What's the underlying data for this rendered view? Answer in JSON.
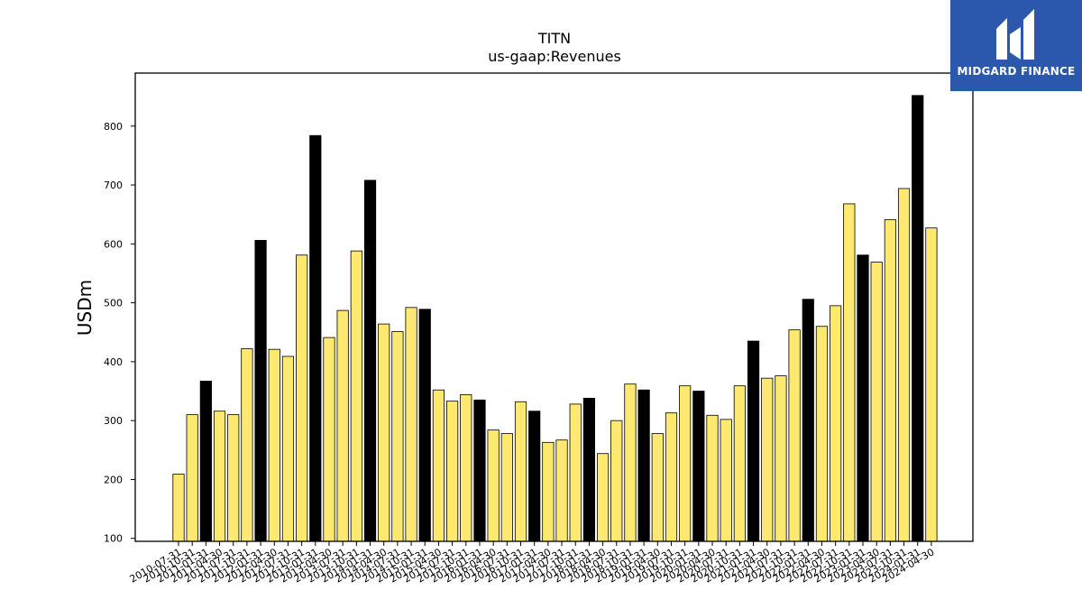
{
  "chart_data": {
    "type": "bar",
    "title": "TITN",
    "subtitle": "us-gaap:Revenues",
    "ylabel": "USDm",
    "xlabel": "",
    "ylim": [
      95,
      890
    ],
    "yticks": [
      100,
      200,
      300,
      400,
      500,
      600,
      700,
      800
    ],
    "grid": false,
    "colors": {
      "quarter": "#fde96f",
      "annual": "#000000",
      "edge": "#000000"
    },
    "categories": [
      "2010-07-31",
      "2010-10-31",
      "2011-01-31",
      "2011-04-30",
      "2011-07-31",
      "2011-10-31",
      "2012-01-31",
      "2012-04-30",
      "2012-07-31",
      "2012-10-31",
      "2013-01-31",
      "2013-04-30",
      "2013-07-31",
      "2013-10-31",
      "2014-01-31",
      "2014-04-30",
      "2014-07-31",
      "2014-10-31",
      "2015-01-31",
      "2015-04-30",
      "2015-07-31",
      "2015-10-31",
      "2016-01-31",
      "2016-04-30",
      "2016-07-31",
      "2016-10-31",
      "2017-01-31",
      "2017-04-30",
      "2017-07-31",
      "2017-10-31",
      "2018-01-31",
      "2018-04-30",
      "2018-07-31",
      "2018-10-31",
      "2019-01-31",
      "2019-04-30",
      "2019-07-31",
      "2019-10-31",
      "2020-01-31",
      "2020-04-30",
      "2020-07-31",
      "2020-10-31",
      "2021-01-31",
      "2021-04-30",
      "2021-07-31",
      "2021-10-31",
      "2022-01-31",
      "2022-04-30",
      "2022-07-31",
      "2022-10-31",
      "2023-01-31",
      "2023-04-30",
      "2023-07-31",
      "2023-10-31",
      "2024-01-31",
      "2024-04-30"
    ],
    "values": [
      209,
      310,
      367,
      316,
      310,
      422,
      606,
      421,
      409,
      581,
      784,
      441,
      487,
      588,
      708,
      464,
      451,
      492,
      489,
      352,
      333,
      344,
      335,
      284,
      278,
      332,
      316,
      263,
      267,
      328,
      338,
      244,
      300,
      362,
      352,
      278,
      313,
      359,
      350,
      309,
      302,
      359,
      435,
      372,
      376,
      454,
      506,
      460,
      495,
      668,
      581,
      569,
      641,
      694,
      852,
      627
    ],
    "annual": [
      false,
      false,
      true,
      false,
      false,
      false,
      true,
      false,
      false,
      false,
      true,
      false,
      false,
      false,
      true,
      false,
      false,
      false,
      true,
      false,
      false,
      false,
      true,
      false,
      false,
      false,
      true,
      false,
      false,
      false,
      true,
      false,
      false,
      false,
      true,
      false,
      false,
      false,
      true,
      false,
      false,
      false,
      true,
      false,
      false,
      false,
      true,
      false,
      false,
      false,
      true,
      false,
      false,
      false,
      true,
      false
    ]
  },
  "logo": {
    "text": "MIDGARD FINANCE",
    "icon": "midgard-logo-icon"
  }
}
